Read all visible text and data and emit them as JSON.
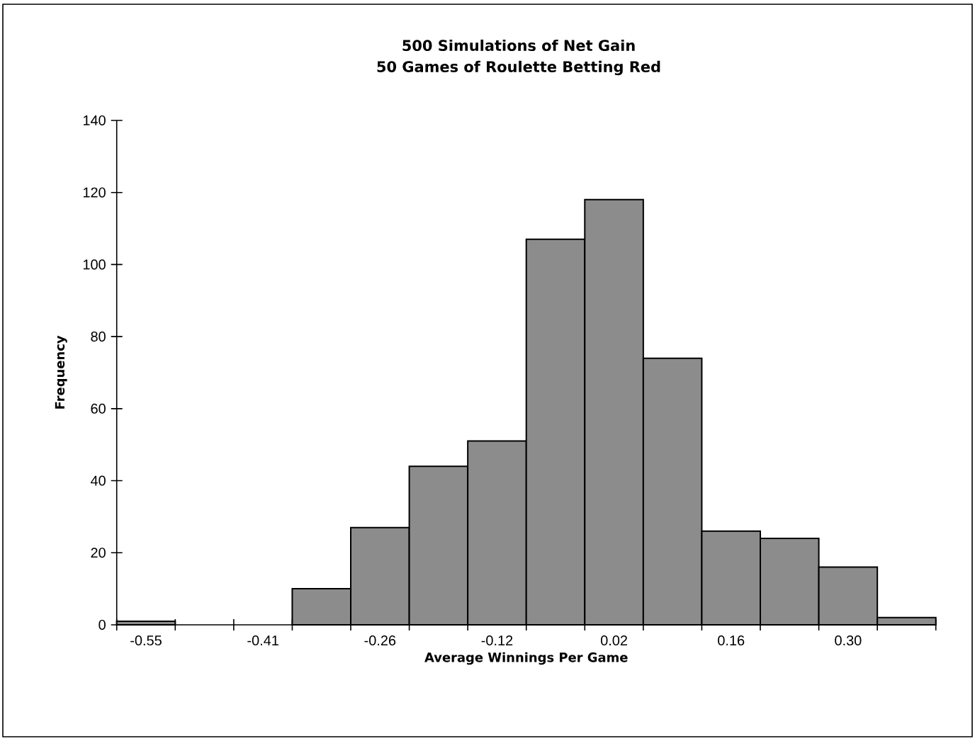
{
  "chart_data": {
    "type": "bar",
    "title": "500 Simulations of Net Gain",
    "subtitle": "50 Games of Roulette Betting Red",
    "xlabel": "Average Winnings Per Game",
    "ylabel": "Frequency",
    "categories": [
      "-0.55",
      null,
      "-0.41",
      null,
      "-0.26",
      null,
      "-0.12",
      null,
      "0.02",
      null,
      "0.16",
      null,
      "0.30",
      null
    ],
    "values": [
      1,
      0,
      0,
      10,
      27,
      44,
      51,
      107,
      118,
      74,
      26,
      24,
      16,
      2
    ],
    "color": "#8c8c8c",
    "ylim": [
      0,
      140
    ],
    "yticks": [
      0,
      20,
      40,
      60,
      80,
      100,
      120,
      140
    ]
  }
}
